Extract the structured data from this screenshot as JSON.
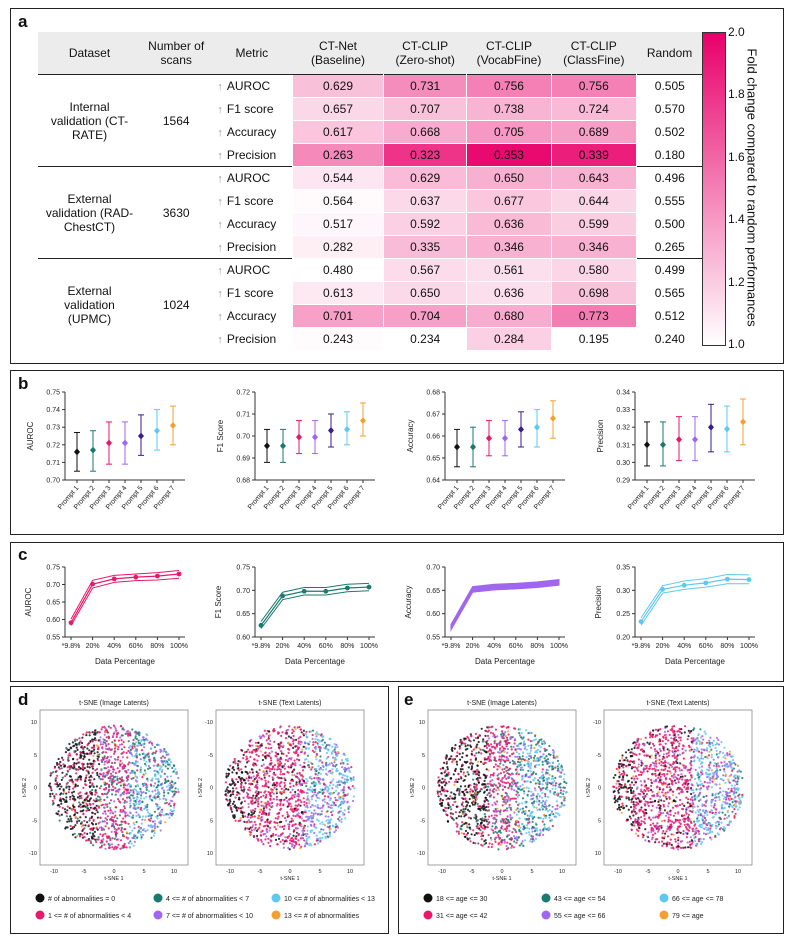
{
  "panels": {
    "a": "a",
    "b": "b",
    "c": "c",
    "d": "d",
    "e": "e"
  },
  "table": {
    "headers": [
      "Dataset",
      "Number of scans",
      "Metric",
      "CT-Net (Baseline)",
      "CT-CLIP (Zero-shot)",
      "CT-CLIP (VocabFine)",
      "CT-CLIP (ClassFine)",
      "Random"
    ],
    "groups": [
      {
        "dataset": "Internal validation (CT-RATE)",
        "scans": "1564",
        "rows": [
          {
            "metric": "AUROC",
            "values": [
              "0.629",
              "0.731",
              "0.756",
              "0.756"
            ],
            "random": "0.505"
          },
          {
            "metric": "F1 score",
            "values": [
              "0.657",
              "0.707",
              "0.738",
              "0.724"
            ],
            "random": "0.570"
          },
          {
            "metric": "Accuracy",
            "values": [
              "0.617",
              "0.668",
              "0.705",
              "0.689"
            ],
            "random": "0.502"
          },
          {
            "metric": "Precision",
            "values": [
              "0.263",
              "0.323",
              "0.353",
              "0.339"
            ],
            "random": "0.180"
          }
        ]
      },
      {
        "dataset": "External validation (RAD-ChestCT)",
        "scans": "3630",
        "rows": [
          {
            "metric": "AUROC",
            "values": [
              "0.544",
              "0.629",
              "0.650",
              "0.643"
            ],
            "random": "0.496"
          },
          {
            "metric": "F1 score",
            "values": [
              "0.564",
              "0.637",
              "0.677",
              "0.644"
            ],
            "random": "0.555"
          },
          {
            "metric": "Accuracy",
            "values": [
              "0.517",
              "0.592",
              "0.636",
              "0.599"
            ],
            "random": "0.500"
          },
          {
            "metric": "Precision",
            "values": [
              "0.282",
              "0.335",
              "0.346",
              "0.346"
            ],
            "random": "0.265"
          }
        ]
      },
      {
        "dataset": "External validation (UPMC)",
        "scans": "1024",
        "rows": [
          {
            "metric": "AUROC",
            "values": [
              "0.480",
              "0.567",
              "0.561",
              "0.580"
            ],
            "random": "0.499"
          },
          {
            "metric": "F1 score",
            "values": [
              "0.613",
              "0.650",
              "0.636",
              "0.698"
            ],
            "random": "0.565"
          },
          {
            "metric": "Accuracy",
            "values": [
              "0.701",
              "0.704",
              "0.680",
              "0.773"
            ],
            "random": "0.512"
          },
          {
            "metric": "Precision",
            "values": [
              "0.243",
              "0.234",
              "0.284",
              "0.195"
            ],
            "random": "0.240"
          }
        ]
      }
    ],
    "colorbar": {
      "label": "Fold change compared to random performances",
      "ticks": [
        "2.0",
        "1.8",
        "1.6",
        "1.4",
        "1.2",
        "1.0"
      ],
      "min": 1.0,
      "max": 2.0,
      "color_low": "#ffffff",
      "color_high": "#e8006a"
    }
  },
  "chart_data": [
    {
      "panel": "b",
      "type": "scatter",
      "ylabel": "AUROC",
      "categories": [
        "Prompt 1",
        "Prompt 2",
        "Prompt 3",
        "Prompt 4",
        "Prompt 5",
        "Prompt 6",
        "Prompt 7"
      ],
      "values": [
        0.716,
        0.717,
        0.721,
        0.721,
        0.725,
        0.728,
        0.731
      ],
      "lower": [
        0.705,
        0.705,
        0.709,
        0.709,
        0.714,
        0.717,
        0.72
      ],
      "upper": [
        0.727,
        0.728,
        0.733,
        0.733,
        0.737,
        0.74,
        0.742
      ],
      "ylim": [
        0.7,
        0.75
      ],
      "yticks": [
        "0.70",
        "0.71",
        "0.72",
        "0.73",
        "0.74",
        "0.75"
      ]
    },
    {
      "panel": "b",
      "type": "scatter",
      "ylabel": "F1 Score",
      "categories": [
        "Prompt 1",
        "Prompt 2",
        "Prompt 3",
        "Prompt 4",
        "Prompt 5",
        "Prompt 6",
        "Prompt 7"
      ],
      "values": [
        0.6955,
        0.6955,
        0.6995,
        0.6995,
        0.7025,
        0.703,
        0.707
      ],
      "lower": [
        0.688,
        0.688,
        0.692,
        0.692,
        0.695,
        0.696,
        0.7
      ],
      "upper": [
        0.703,
        0.703,
        0.707,
        0.707,
        0.71,
        0.711,
        0.715
      ],
      "ylim": [
        0.68,
        0.72
      ],
      "yticks": [
        "0.68",
        "0.69",
        "0.70",
        "0.71",
        "0.72"
      ]
    },
    {
      "panel": "b",
      "type": "scatter",
      "ylabel": "Accuracy",
      "categories": [
        "Prompt 1",
        "Prompt 2",
        "Prompt 3",
        "Prompt 4",
        "Prompt 5",
        "Prompt 6",
        "Prompt 7"
      ],
      "values": [
        0.655,
        0.655,
        0.659,
        0.659,
        0.663,
        0.664,
        0.668
      ],
      "lower": [
        0.646,
        0.646,
        0.651,
        0.651,
        0.655,
        0.655,
        0.659
      ],
      "upper": [
        0.663,
        0.664,
        0.667,
        0.667,
        0.671,
        0.672,
        0.676
      ],
      "ylim": [
        0.64,
        0.68
      ],
      "yticks": [
        "0.64",
        "0.65",
        "0.66",
        "0.67",
        "0.68"
      ]
    },
    {
      "panel": "b",
      "type": "scatter",
      "ylabel": "Precision",
      "categories": [
        "Prompt 1",
        "Prompt 2",
        "Prompt 3",
        "Prompt 4",
        "Prompt 5",
        "Prompt 6",
        "Prompt 7"
      ],
      "values": [
        0.31,
        0.31,
        0.313,
        0.313,
        0.32,
        0.319,
        0.323
      ],
      "lower": [
        0.298,
        0.298,
        0.301,
        0.301,
        0.306,
        0.306,
        0.31
      ],
      "upper": [
        0.323,
        0.323,
        0.326,
        0.326,
        0.333,
        0.332,
        0.336
      ],
      "ylim": [
        0.29,
        0.34
      ],
      "yticks": [
        "0.29",
        "0.30",
        "0.31",
        "0.32",
        "0.33",
        "0.34"
      ]
    },
    {
      "panel": "c",
      "type": "line",
      "ylabel": "AUROC",
      "xlabel": "Data Percentage",
      "categories": [
        "*9.8%",
        "20%",
        "40%",
        "60%",
        "80%",
        "100%"
      ],
      "values": [
        0.591,
        0.701,
        0.716,
        0.721,
        0.724,
        0.73
      ],
      "lower": [
        0.583,
        0.69,
        0.706,
        0.711,
        0.713,
        0.718
      ],
      "upper": [
        0.601,
        0.712,
        0.726,
        0.73,
        0.734,
        0.74
      ],
      "ylim": [
        0.55,
        0.75
      ],
      "yticks": [
        "0.55",
        "0.60",
        "0.65",
        "0.70",
        "0.75"
      ]
    },
    {
      "panel": "c",
      "type": "line",
      "ylabel": "F1 Score",
      "xlabel": "Data Percentage",
      "categories": [
        "*9.8%",
        "20%",
        "40%",
        "60%",
        "80%",
        "100%"
      ],
      "values": [
        0.625,
        0.688,
        0.698,
        0.698,
        0.705,
        0.707
      ],
      "lower": [
        0.618,
        0.68,
        0.69,
        0.69,
        0.697,
        0.699
      ],
      "upper": [
        0.633,
        0.696,
        0.706,
        0.706,
        0.713,
        0.715
      ],
      "ylim": [
        0.6,
        0.75
      ],
      "yticks": [
        "0.60",
        "0.65",
        "0.70",
        "0.75"
      ]
    },
    {
      "panel": "c",
      "type": "area",
      "ylabel": "Accuracy",
      "xlabel": "Data Percentage",
      "categories": [
        "*9.8%",
        "20%",
        "40%",
        "60%",
        "80%",
        "100%"
      ],
      "values": [
        0.571,
        0.652,
        0.657,
        0.659,
        0.662,
        0.667
      ],
      "lower": [
        0.565,
        0.646,
        0.651,
        0.653,
        0.656,
        0.661
      ],
      "upper": [
        0.577,
        0.658,
        0.663,
        0.665,
        0.668,
        0.673
      ],
      "ylim": [
        0.55,
        0.7
      ],
      "yticks": [
        "0.55",
        "0.60",
        "0.65",
        "0.70"
      ]
    },
    {
      "panel": "c",
      "type": "line",
      "ylabel": "Precision",
      "xlabel": "Data Percentage",
      "categories": [
        "*9.8%",
        "20%",
        "40%",
        "60%",
        "80%",
        "100%"
      ],
      "values": [
        0.233,
        0.302,
        0.311,
        0.316,
        0.324,
        0.323
      ],
      "lower": [
        0.225,
        0.294,
        0.302,
        0.307,
        0.314,
        0.314
      ],
      "upper": [
        0.241,
        0.31,
        0.32,
        0.325,
        0.334,
        0.333
      ],
      "ylim": [
        0.2,
        0.35
      ],
      "yticks": [
        "0.20",
        "0.25",
        "0.30",
        "0.35"
      ]
    }
  ],
  "prompt_colors": [
    "#111111",
    "#1a7a70",
    "#e8186a",
    "#a066f0",
    "#3a1d8a",
    "#5fc8f0",
    "#f4a030"
  ],
  "c_colors": [
    "#e8186a",
    "#1a7a70",
    "#a066f0",
    "#5fc8f0"
  ],
  "tsne": {
    "image_title": "t-SNE (Image Latents)",
    "text_title": "t-SNE (Text Latents)",
    "xlabel": "t-SNE 1",
    "ylabel": "t-SNE 2",
    "image_xticks": [
      "-10",
      "-5",
      "0",
      "5",
      "10"
    ],
    "image_yticks": [
      "10",
      "5",
      "0",
      "-5",
      "-10"
    ],
    "text_xticks": [
      "-10",
      "-5",
      "0",
      "5",
      "10"
    ],
    "text_yticks": [
      "-10",
      "-5",
      "0",
      "5",
      "10"
    ]
  },
  "legend_d": [
    {
      "label": "# of abnormalities = 0",
      "color": "#111111"
    },
    {
      "label": "4 <= # of abnormalities < 7",
      "color": "#1a7a70"
    },
    {
      "label": "10 <= # of abnormalities < 13",
      "color": "#5fc8f0"
    },
    {
      "label": "1 <= # of abnormalities < 4",
      "color": "#e8186a"
    },
    {
      "label": "7  <= # of abnormalities < 10",
      "color": "#a066f0"
    },
    {
      "label": "13 <= # of abnormalities",
      "color": "#f4a030"
    }
  ],
  "legend_e": [
    {
      "label": "18 <= age <= 30",
      "color": "#111111"
    },
    {
      "label": "43 <= age <= 54",
      "color": "#1a7a70"
    },
    {
      "label": "66 <= age <= 78",
      "color": "#5fc8f0"
    },
    {
      "label": "31 <= age <= 42",
      "color": "#e8186a"
    },
    {
      "label": "55 <= age <= 66",
      "color": "#a066f0"
    },
    {
      "label": "79 <= age",
      "color": "#f4a030"
    }
  ]
}
